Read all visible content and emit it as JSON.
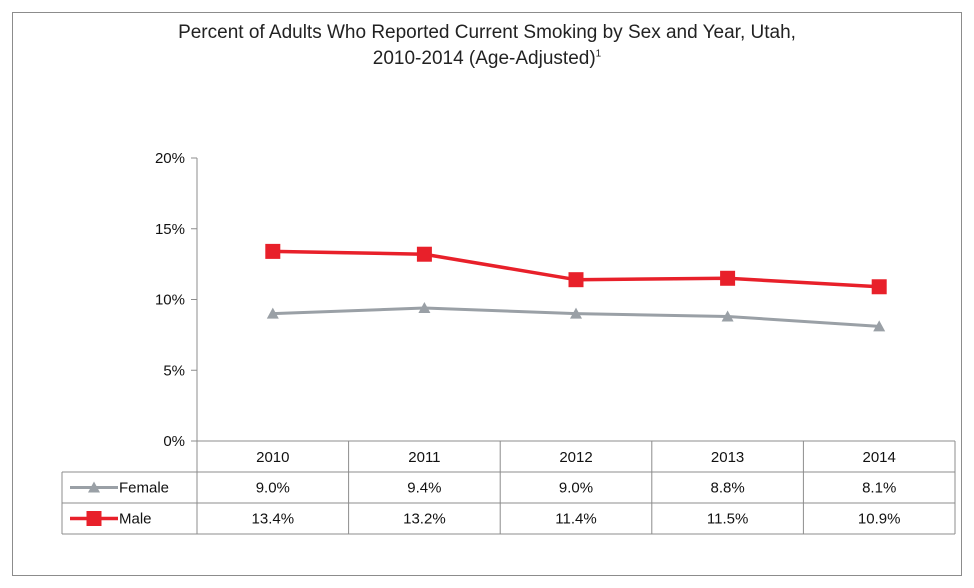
{
  "chart_data": {
    "type": "line",
    "title_main": "Percent of Adults Who Reported Current Smoking by Sex and Year, Utah,",
    "title_line2": "2010-2014 (Age-Adjusted)",
    "title_superscript": "1",
    "categories": [
      "2010",
      "2011",
      "2012",
      "2013",
      "2014"
    ],
    "y_ticks": [
      "0%",
      "5%",
      "10%",
      "15%",
      "20%"
    ],
    "ylim": [
      0,
      20
    ],
    "grid": false,
    "legend": "data-table",
    "series": [
      {
        "name": "Female",
        "values": [
          9.0,
          9.4,
          9.0,
          8.8,
          8.1
        ],
        "labels": [
          "9.0%",
          "9.4%",
          "9.0%",
          "8.8%",
          "8.1%"
        ],
        "color": "#9aa0a6",
        "marker": "triangle"
      },
      {
        "name": "Male",
        "values": [
          13.4,
          13.2,
          11.4,
          11.5,
          10.9
        ],
        "labels": [
          "13.4%",
          "13.2%",
          "11.4%",
          "11.5%",
          "10.9%"
        ],
        "color": "#e8202a",
        "marker": "square"
      }
    ]
  }
}
